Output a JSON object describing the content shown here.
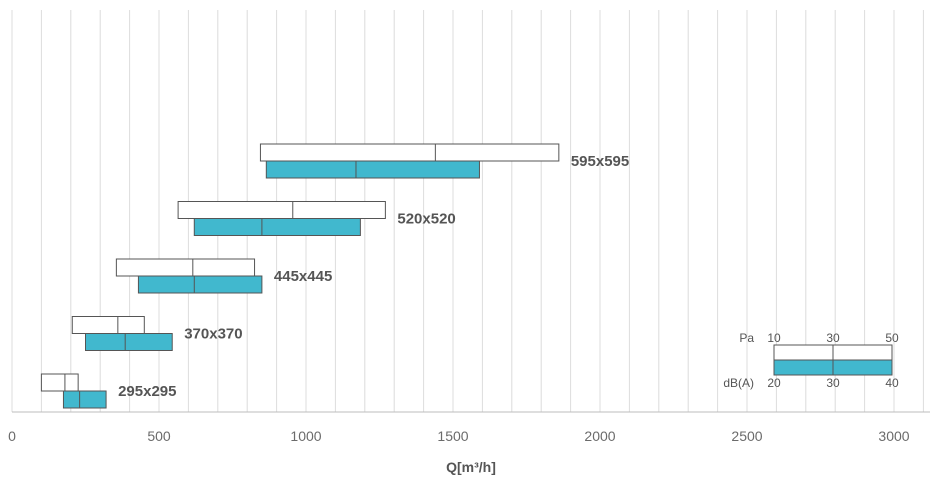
{
  "chart_data": {
    "type": "bar",
    "orientation": "horizontal-range",
    "xlabel": "Q[m³/h]",
    "xlim": [
      0,
      3150
    ],
    "xticks": [
      0,
      500,
      1000,
      1500,
      2000,
      2500,
      3000
    ],
    "grid": "vertical every 100",
    "bar_colors": {
      "pressure": "#ffffff",
      "sound": "#41b8ce"
    },
    "series": [
      {
        "name": "Pa",
        "note": "range 10–50"
      },
      {
        "name": "dB(A)",
        "note": "range 20–40"
      }
    ],
    "categories": [
      "295x295",
      "370x370",
      "445x445",
      "520x520",
      "595x595"
    ],
    "ranges": [
      {
        "label": "295x295",
        "pa": [
          100,
          180,
          225
        ],
        "dba": [
          175,
          230,
          320
        ]
      },
      {
        "label": "370x370",
        "pa": [
          205,
          360,
          450
        ],
        "dba": [
          250,
          385,
          545
        ]
      },
      {
        "label": "445x445",
        "pa": [
          355,
          615,
          825
        ],
        "dba": [
          430,
          620,
          850
        ]
      },
      {
        "label": "520x520",
        "pa": [
          565,
          955,
          1270
        ],
        "dba": [
          620,
          850,
          1185
        ]
      },
      {
        "label": "595x595",
        "pa": [
          845,
          1440,
          1860
        ],
        "dba": [
          865,
          1170,
          1590
        ]
      }
    ],
    "legend": {
      "pa_label": "Pa",
      "pa_ticks": [
        "10",
        "30",
        "50"
      ],
      "dba_label": "dB(A)",
      "dba_ticks": [
        "20",
        "30",
        "40"
      ],
      "placement": "bottom-right"
    }
  }
}
